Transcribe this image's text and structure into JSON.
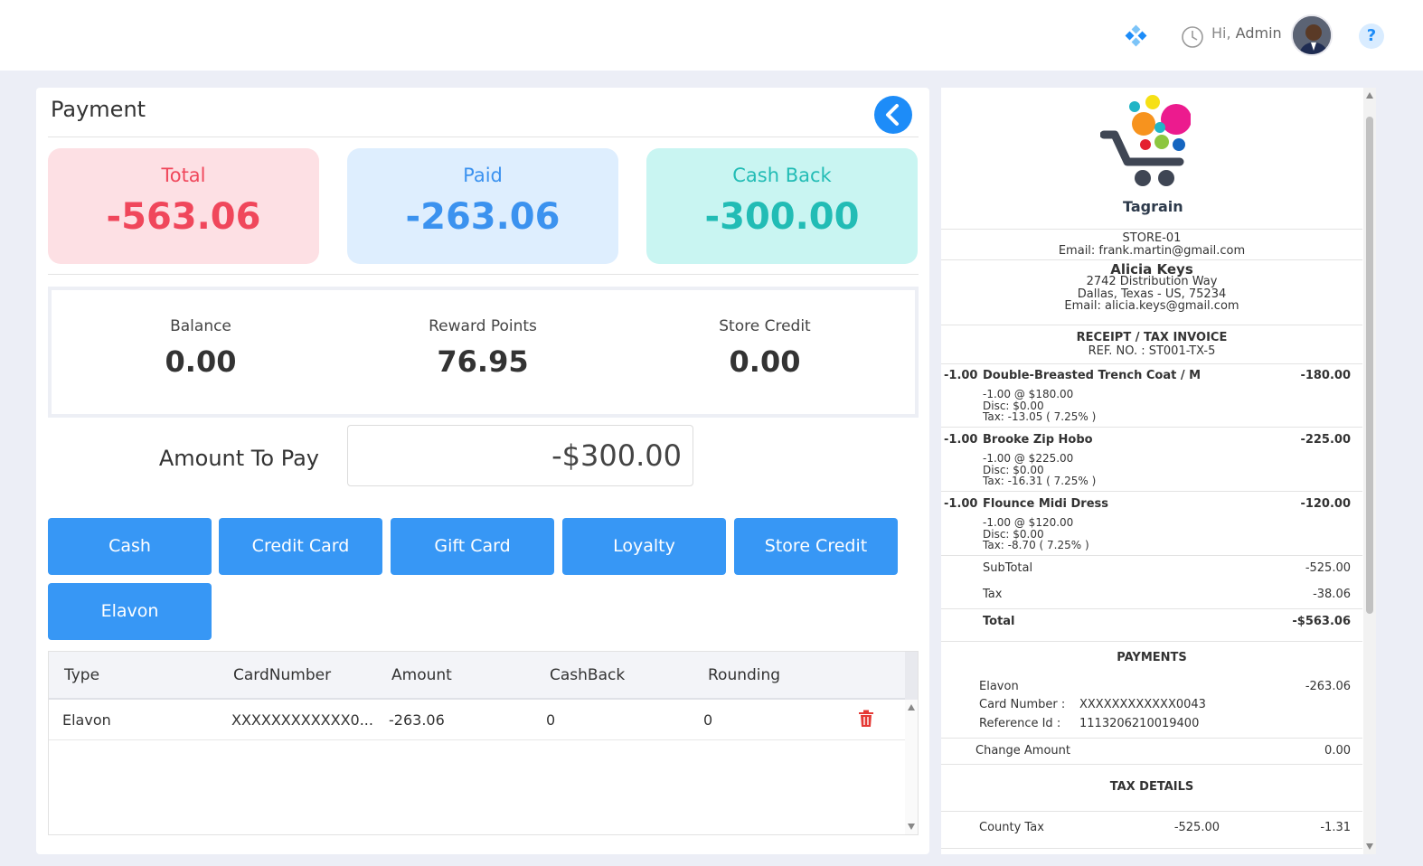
{
  "header": {
    "greeting_prefix": "Hi,",
    "user_name": "Admin",
    "help_glyph": "?"
  },
  "payment": {
    "title": "Payment",
    "summary": {
      "total_label": "Total",
      "total_value": "-563.06",
      "paid_label": "Paid",
      "paid_value": "-263.06",
      "cashback_label": "Cash Back",
      "cashback_value": "-300.00"
    },
    "stats": {
      "balance_label": "Balance",
      "balance_value": "0.00",
      "reward_label": "Reward Points",
      "reward_value": "76.95",
      "store_credit_label": "Store Credit",
      "store_credit_value": "0.00"
    },
    "amount_to_pay_label": "Amount To Pay",
    "amount_to_pay_value": "-$300.00",
    "methods": [
      "Cash",
      "Credit Card",
      "Gift Card",
      "Loyalty",
      "Store Credit",
      "Elavon"
    ],
    "table": {
      "columns": [
        "Type",
        "CardNumber",
        "Amount",
        "CashBack",
        "Rounding"
      ],
      "rows": [
        {
          "type": "Elavon",
          "card": "XXXXXXXXXXXX0...",
          "amount": "-263.06",
          "cashback": "0",
          "rounding": "0"
        }
      ]
    }
  },
  "receipt": {
    "brand": "Tagrain",
    "store": "STORE-01",
    "store_email": "Email: frank.martin@gmail.com",
    "customer_name": "Alicia Keys",
    "customer_address1": "2742 Distribution Way",
    "customer_address2": "Dallas, Texas - US, 75234",
    "customer_email": "Email: alicia.keys@gmail.com",
    "doc_title": "RECEIPT / TAX INVOICE",
    "ref_no": "REF. NO. : ST001-TX-5",
    "items": [
      {
        "qty": "-1.00",
        "name": "Double-Breasted Trench Coat / M",
        "total": "-180.00",
        "line": "-1.00 @ $180.00",
        "disc": "Disc: $0.00",
        "tax": "Tax: -13.05 ( 7.25% )"
      },
      {
        "qty": "-1.00",
        "name": "Brooke Zip Hobo",
        "total": "-225.00",
        "line": "-1.00 @ $225.00",
        "disc": "Disc: $0.00",
        "tax": "Tax: -16.31 ( 7.25% )"
      },
      {
        "qty": "-1.00",
        "name": "Flounce Midi Dress",
        "total": "-120.00",
        "line": "-1.00 @ $120.00",
        "disc": "Disc: $0.00",
        "tax": "Tax: -8.70 ( 7.25% )"
      }
    ],
    "subtotal_label": "SubTotal",
    "subtotal_value": "-525.00",
    "tax_label": "Tax",
    "tax_value": "-38.06",
    "total_label": "Total",
    "total_value": "-$563.06",
    "payments_title": "PAYMENTS",
    "payment_type": "Elavon",
    "payment_amount": "-263.06",
    "card_label": "Card Number :",
    "card_value": "XXXXXXXXXXXX0043",
    "ref_label": "Reference Id :",
    "ref_value": "1113206210019400",
    "change_label": "Change Amount",
    "change_value": "0.00",
    "tax_details_title": "TAX DETAILS",
    "county_tax_label": "County Tax",
    "county_tax_base": "-525.00",
    "county_tax_value": "-1.31"
  },
  "colors": {
    "accent": "#3797f5",
    "total": "#f0475b",
    "paid": "#3b92ef",
    "cashback": "#22bcb5",
    "delete": "#e53935"
  },
  "icons": [
    "diamond-icon",
    "clock-icon",
    "avatar",
    "help-icon",
    "back-arrow-icon",
    "trash-icon",
    "brand-logo"
  ]
}
